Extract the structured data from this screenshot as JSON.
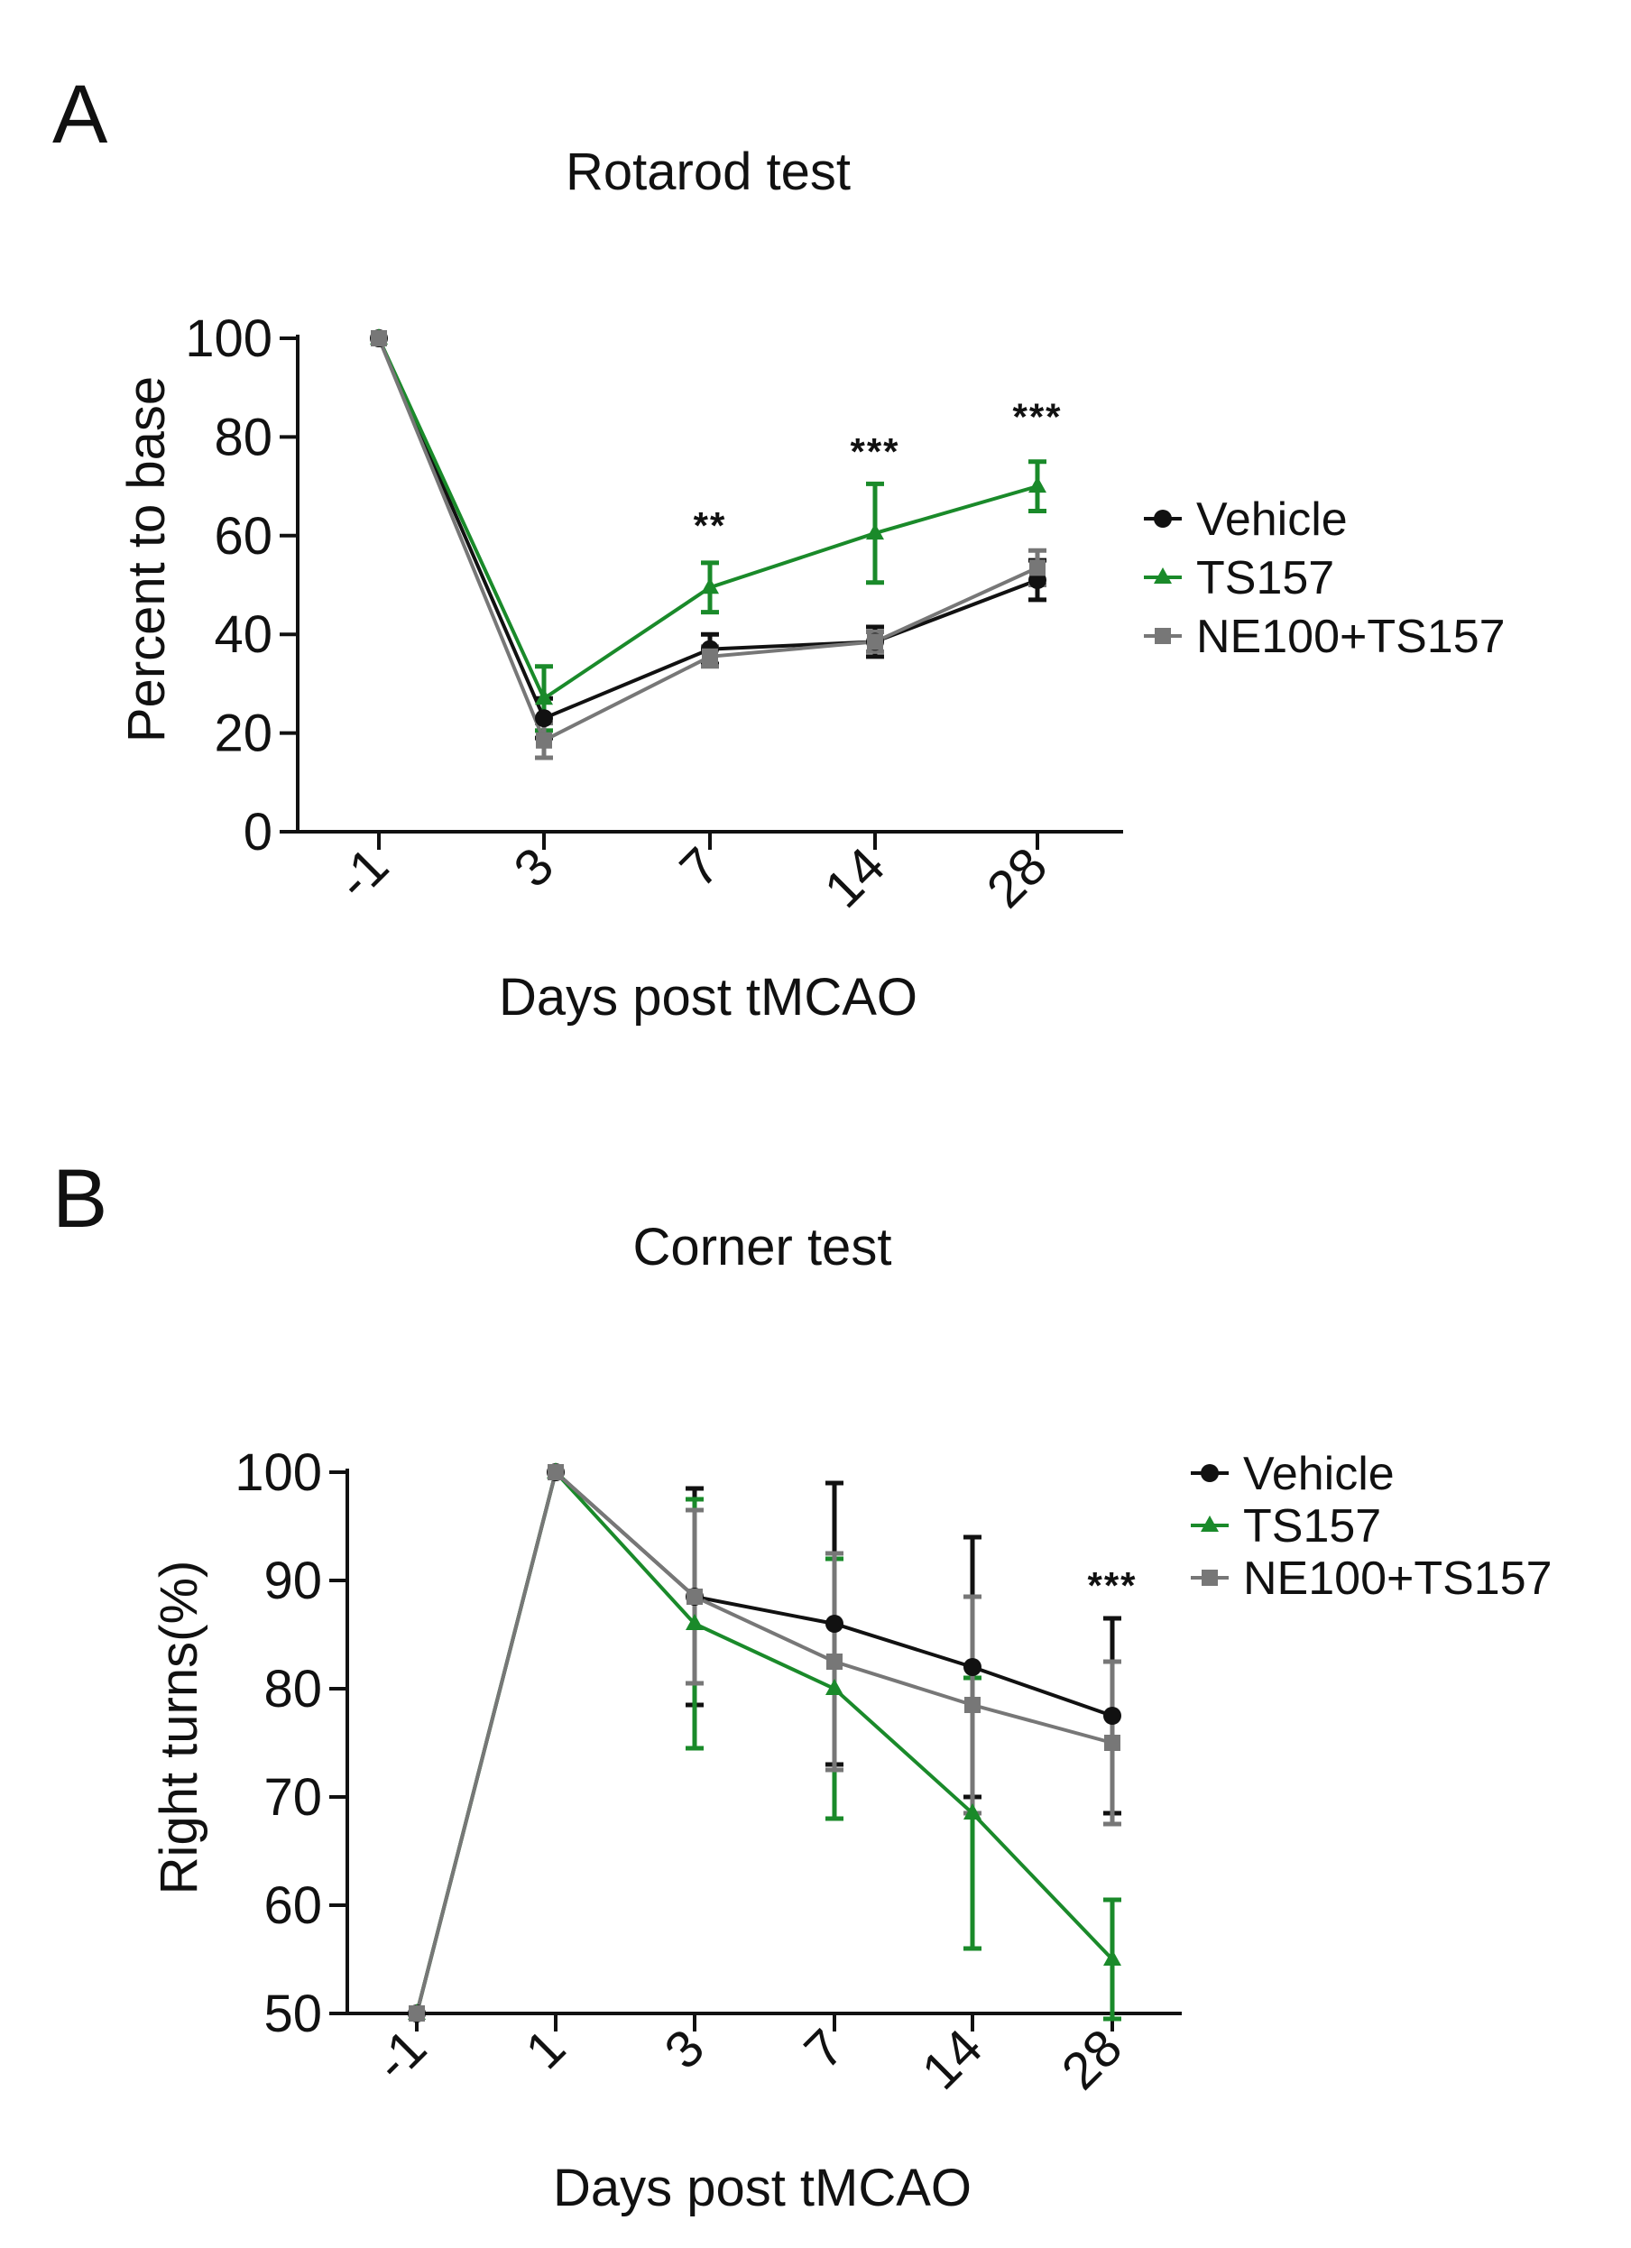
{
  "chart_data": [
    {
      "type": "line",
      "panel": "A",
      "title": "Rotarod test",
      "xlabel": "Days post tMCAO",
      "ylabel": "Percent to base",
      "categories": [
        "-1",
        "3",
        "7",
        "14",
        "28"
      ],
      "ylim": [
        0,
        100
      ],
      "yticks": [
        0,
        20,
        40,
        60,
        80,
        100
      ],
      "series": [
        {
          "name": "Vehicle",
          "color": "#111111",
          "marker": "circle",
          "values": [
            100,
            23,
            37,
            38.5,
            51
          ],
          "errors": [
            0,
            4,
            3,
            3,
            4
          ]
        },
        {
          "name": "TS157",
          "color": "#1a8a2a",
          "marker": "triangle",
          "values": [
            100,
            27,
            49.5,
            60.5,
            70
          ],
          "errors": [
            0,
            6.5,
            5,
            10,
            5
          ]
        },
        {
          "name": "NE100+TS157",
          "color": "#777777",
          "marker": "square",
          "values": [
            100,
            18.5,
            35.5,
            38.5,
            53.5
          ],
          "errors": [
            0,
            3.5,
            2,
            2,
            3.5
          ]
        }
      ],
      "annotations": [
        {
          "category": "7",
          "text": "**",
          "y": 62
        },
        {
          "category": "14",
          "text": "***",
          "y": 77
        },
        {
          "category": "28",
          "text": "***",
          "y": 84
        }
      ],
      "legend": "right"
    },
    {
      "type": "line",
      "panel": "B",
      "title": "Corner test",
      "xlabel": "Days post tMCAO",
      "ylabel": "Right turns(%)",
      "categories": [
        "-1",
        "1",
        "3",
        "7",
        "14",
        "28"
      ],
      "ylim": [
        50,
        100
      ],
      "yticks": [
        50,
        60,
        70,
        80,
        90,
        100
      ],
      "series": [
        {
          "name": "Vehicle",
          "color": "#111111",
          "marker": "circle",
          "values": [
            50,
            100,
            88.5,
            86,
            82,
            77.5
          ],
          "errors": [
            0,
            0,
            10,
            13,
            12,
            9
          ]
        },
        {
          "name": "TS157",
          "color": "#1a8a2a",
          "marker": "triangle",
          "values": [
            50,
            100,
            86,
            80,
            68.5,
            55
          ],
          "errors": [
            0,
            0,
            11.5,
            12,
            12.5,
            5.5
          ]
        },
        {
          "name": "NE100+TS157",
          "color": "#777777",
          "marker": "square",
          "values": [
            50,
            100,
            88.5,
            82.5,
            78.5,
            75
          ],
          "errors": [
            0,
            0,
            8,
            10,
            10,
            7.5
          ]
        }
      ],
      "annotations": [
        {
          "category": "28",
          "text": "***",
          "y": 89.5
        }
      ],
      "legend": "top-right"
    }
  ]
}
